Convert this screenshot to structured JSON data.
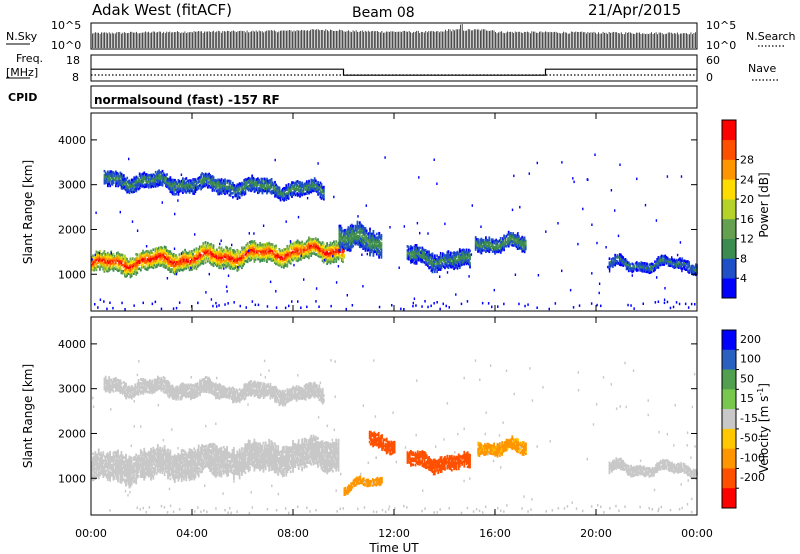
{
  "header": {
    "station": "Adak West (fitACF)",
    "beam": "Beam 08",
    "date": "21/Apr/2015"
  },
  "summary": {
    "nsky_label": "N.Sky",
    "nsearch_label": "N.Search",
    "nsky_tick_top": "10^5",
    "nsky_tick_bottom": "10^0",
    "freq_label_line1": "Freq.",
    "freq_label_line2": "[MHz]",
    "freq_ticks": [
      "18",
      "8"
    ],
    "nave_label": "Nave",
    "nave_ticks": [
      "60",
      "0"
    ],
    "cpid_label": "CPID",
    "cpid_text": "normalsound (fast) -157 RF"
  },
  "x_axis": {
    "label": "Time UT",
    "tick_labels": [
      "00:00",
      "04:00",
      "08:00",
      "12:00",
      "16:00",
      "20:00",
      "00:00"
    ]
  },
  "y_axis": {
    "label": "Slant Range [km]",
    "tick_labels": [
      "1000",
      "2000",
      "3000",
      "4000"
    ]
  },
  "power_colorbar": {
    "label": "Power [dB]",
    "tick_labels": [
      "4",
      "8",
      "12",
      "16",
      "20",
      "24",
      "28"
    ]
  },
  "velocity_colorbar": {
    "label_main": "Velocity [m s",
    "label_sup": "-1",
    "label_close": "]",
    "tick_labels": [
      "200",
      "100",
      "50",
      "15",
      "-15",
      "-50",
      "-100",
      "-200"
    ]
  },
  "chart_data": [
    {
      "type": "line",
      "panel": "summary-nsky",
      "x_unit": "hours UT",
      "x": [
        0,
        2,
        4,
        6,
        8,
        9.5,
        10,
        12,
        14,
        14.7,
        16,
        18,
        20,
        22,
        24
      ],
      "series": [
        {
          "name": "N.Sky",
          "values": [
            1200,
            1800,
            2500,
            3000,
            4000,
            9000,
            3500,
            2600,
            2400,
            80000,
            2200,
            2000,
            1600,
            1400,
            1300
          ]
        }
      ],
      "ylim": [
        1,
        100000
      ]
    },
    {
      "type": "line",
      "panel": "summary-freq",
      "x_unit": "hours UT",
      "x": [
        0,
        10,
        10,
        18,
        18,
        24
      ],
      "series": [
        {
          "name": "Freq.",
          "values": [
            12.5,
            12.5,
            10.0,
            10.0,
            12.5,
            12.5
          ]
        }
      ],
      "nave": [
        5,
        5,
        5,
        5,
        5,
        5
      ],
      "ylim": [
        8,
        18
      ]
    },
    {
      "type": "heatmap",
      "panel": "power",
      "x_unit": "hours UT",
      "xlim": [
        0,
        24
      ],
      "ylim": [
        180,
        4600
      ],
      "colors": [
        "#0000ff",
        "#2050c8",
        "#3c8c50",
        "#64a050",
        "#b4d228",
        "#ffdc00",
        "#ff9600",
        "#ff5000",
        "#ff0000"
      ],
      "regions": [
        {
          "x": [
            0,
            10
          ],
          "range_center": [
            1250,
            1600
          ],
          "range_width": 400,
          "value": 26
        },
        {
          "x": [
            0.5,
            9.2
          ],
          "range_center": [
            3150,
            2900
          ],
          "range_width": 300,
          "value": 8
        },
        {
          "x": [
            9.8,
            11.5
          ],
          "range_center": [
            1900,
            1700
          ],
          "range_width": 500,
          "value": 9
        },
        {
          "x": [
            12.5,
            15
          ],
          "range_center": [
            1450,
            1300
          ],
          "range_width": 350,
          "value": 8
        },
        {
          "x": [
            15.2,
            17.2
          ],
          "range_center": [
            1750,
            1700
          ],
          "range_width": 300,
          "value": 9
        },
        {
          "x": [
            20.5,
            24
          ],
          "range_center": [
            1250,
            1250
          ],
          "range_width": 200,
          "value": 7
        }
      ]
    },
    {
      "type": "heatmap",
      "panel": "velocity",
      "x_unit": "hours UT",
      "xlim": [
        0,
        24
      ],
      "ylim": [
        180,
        4600
      ],
      "colors": [
        "#0000ff",
        "#2a60c0",
        "#50a050",
        "#78c850",
        "#c8c8c8",
        "#ffc800",
        "#ff9600",
        "#ff5000",
        "#ff0000"
      ],
      "regions": [
        {
          "x": [
            0,
            9.8
          ],
          "range_center": [
            1250,
            1600
          ],
          "range_width": 600,
          "value": 0
        },
        {
          "x": [
            0.5,
            9.2
          ],
          "range_center": [
            3100,
            2900
          ],
          "range_width": 300,
          "value": 0
        },
        {
          "x": [
            11,
            12
          ],
          "range_center": [
            1950,
            1800
          ],
          "range_width": 300,
          "value": -150
        },
        {
          "x": [
            10,
            11.5
          ],
          "range_center": [
            800,
            1000
          ],
          "range_width": 150,
          "value": -80
        },
        {
          "x": [
            12.5,
            15
          ],
          "range_center": [
            1450,
            1350
          ],
          "range_width": 300,
          "value": -120
        },
        {
          "x": [
            15.3,
            17.2
          ],
          "range_center": [
            1750,
            1700
          ],
          "range_width": 250,
          "value": -60
        },
        {
          "x": [
            20.5,
            24
          ],
          "range_center": [
            1250,
            1250
          ],
          "range_width": 200,
          "value": 0
        }
      ]
    }
  ]
}
